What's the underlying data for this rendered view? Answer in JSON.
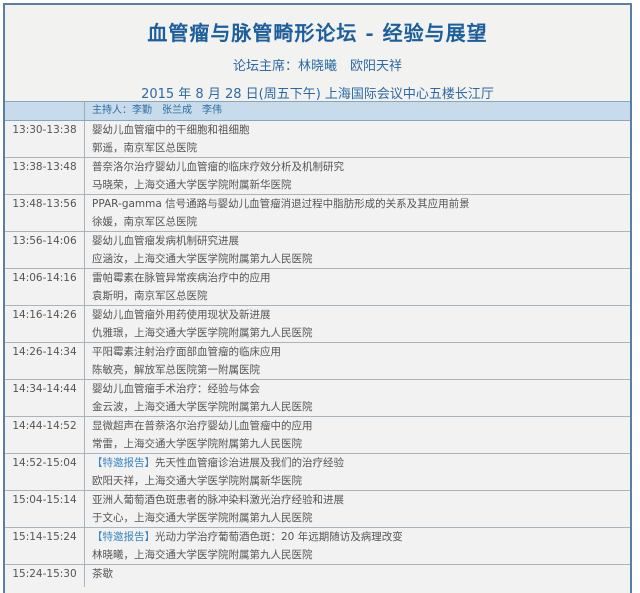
{
  "header": {
    "title": "血管瘤与脉管畸形论坛 - 经验与展望",
    "chairs": "论坛主席：林晓曦　欧阳天祥",
    "date_venue": "2015 年 8 月 28 日(周五下午)  上海国际会议中心五楼长江厅"
  },
  "moderators": "主持人：李勤　张兰成　李伟",
  "colors": {
    "title": "#1d5e9c",
    "accent": "#3a86c2",
    "moderator_bg": "#c7dbea"
  },
  "sessions": [
    {
      "time": "13:30-13:38",
      "tag": "",
      "title": "婴幼儿血管瘤中的干细胞和祖细胞",
      "speaker": "郭遥，南京军区总医院"
    },
    {
      "time": "13:38-13:48",
      "tag": "",
      "title": "普奈洛尔治疗婴幼儿血管瘤的临床疗效分析及机制研究",
      "speaker": "马晓荣，上海交通大学医学院附属新华医院"
    },
    {
      "time": "13:48-13:56",
      "tag": "",
      "title": "PPAR-gamma 信号通路与婴幼儿血管瘤消退过程中脂肪形成的关系及其应用前景",
      "speaker": "徐媛，南京军区总医院"
    },
    {
      "time": "13:56-14:06",
      "tag": "",
      "title": "婴幼儿血管瘤发病机制研究进展",
      "speaker": "应涵汝，上海交通大学医学院附属第九人民医院"
    },
    {
      "time": "14:06-14:16",
      "tag": "",
      "title": "雷帕霉素在脉管异常疾病治疗中的应用",
      "speaker": "袁斯明，南京军区总医院"
    },
    {
      "time": "14:16-14:26",
      "tag": "",
      "title": "婴幼儿血管瘤外用药使用现状及新进展",
      "speaker": "仇雅璟，上海交通大学医学院附属第九人民医院"
    },
    {
      "time": "14:26-14:34",
      "tag": "",
      "title": "平阳霉素注射治疗面部血管瘤的临床应用",
      "speaker": "陈敏亮，解放军总医院第一附属医院"
    },
    {
      "time": "14:34-14:44",
      "tag": "",
      "title": "婴幼儿血管瘤手术治疗：经验与体会",
      "speaker": "金云波，上海交通大学医学院附属第九人民医院"
    },
    {
      "time": "14:44-14:52",
      "tag": "",
      "title": "显微超声在普萘洛尔治疗婴幼儿血管瘤中的应用",
      "speaker": "常雷，上海交通大学医学院附属第九人民医院"
    },
    {
      "time": "14:52-15:04",
      "tag": "【特邀报告】",
      "title": "先天性血管瘤诊治进展及我们的治疗经验",
      "speaker": "欧阳天祥，上海交通大学医学院附属新华医院"
    },
    {
      "time": "15:04-15:14",
      "tag": "",
      "title": "亚洲人葡萄酒色斑患者的脉冲染料激光治疗经验和进展",
      "speaker": "于文心，上海交通大学医学院附属第九人民医院"
    },
    {
      "time": "15:14-15:24",
      "tag": "【特邀报告】",
      "title": "光动力学治疗葡萄酒色斑：20 年远期随访及病理改变",
      "speaker": "林晓曦，上海交通大学医学院附属第九人民医院"
    },
    {
      "time": "15:24-15:30",
      "tag": "",
      "title": "茶歇",
      "speaker": ""
    }
  ]
}
